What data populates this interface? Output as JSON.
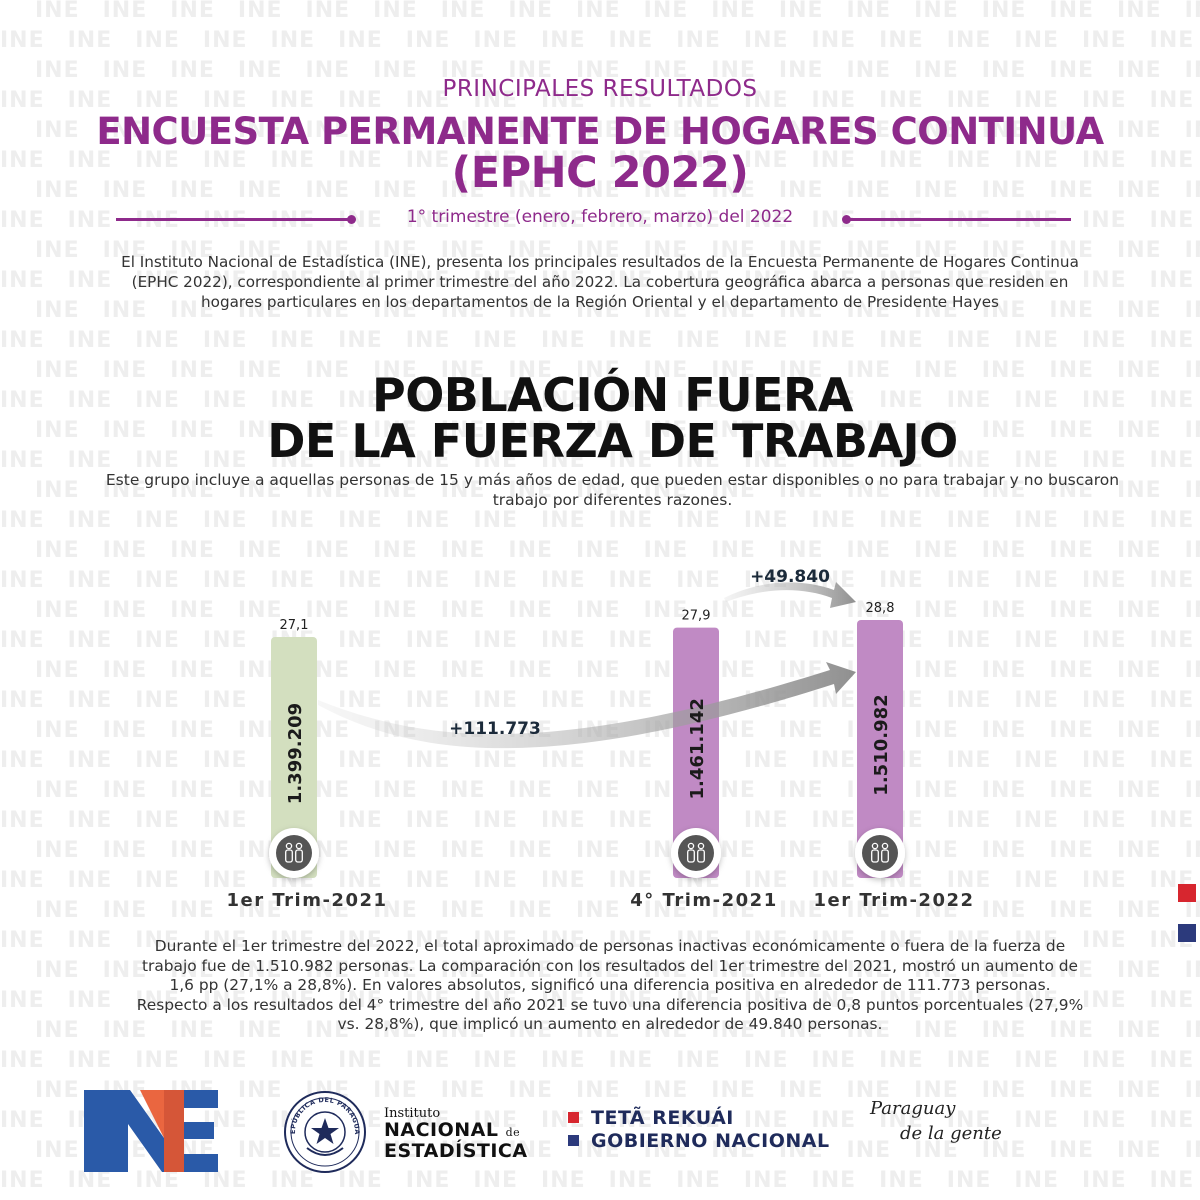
{
  "header": {
    "kicker": "PRINCIPALES RESULTADOS",
    "title_line1": "ENCUESTA PERMANENTE DE HOGARES CONTINUA",
    "title_line2": "(EPHC 2022)",
    "period": "1° trimestre (enero, febrero, marzo) del 2022"
  },
  "intro": "El Instituto Nacional de Estadística (INE), presenta los principales resultados de la Encuesta Permanente de Hogares Continua (EPHC 2022), correspondiente al primer trimestre del año 2022.  La cobertura geográfica abarca a personas que residen en hogares particulares en los departamentos de la Región Oriental y el departamento de Presidente Hayes",
  "section": {
    "title_line1": "POBLACIÓN FUERA",
    "title_line2": "DE LA FUERZA DE TRABAJO",
    "description": "Este grupo incluye a aquellas personas de 15 y más años de edad, que pueden estar disponibles o no para trabajar y no buscaron trabajo por diferentes razones."
  },
  "chart_data": {
    "type": "bar",
    "categories": [
      "1er Trim-2021",
      "4° Trim-2021",
      "1er Trim-2022"
    ],
    "values": [
      1399209,
      1461142,
      1510982
    ],
    "value_labels": [
      "1.399.209",
      "1.461.142",
      "1.510.982"
    ],
    "rates": [
      27.1,
      27.9,
      28.8
    ],
    "rate_labels": [
      "27,1",
      "27,9",
      "28,8"
    ],
    "bar_colors": [
      "#d3dfbf",
      "#c08ac4",
      "#c08ac4"
    ],
    "annotations": [
      {
        "label": "+111.773",
        "from": "1er Trim-2021",
        "to": "1er Trim-2022"
      },
      {
        "label": "+49.840",
        "from": "4° Trim-2021",
        "to": "1er Trim-2022"
      }
    ],
    "icon": "people-icon",
    "grid": false,
    "legend": "none"
  },
  "summary": {
    "paragraph1": "Durante el 1er trimestre del 2022, el total aproximado de personas inactivas económicamente o fuera de la fuerza de trabajo fue de 1.510.982 personas. La comparación con los resultados del 1er trimestre del 2021, mostró un aumento de 1,6 pp (27,1% a 28,8%). En valores absolutos, significó una diferencia positiva en alrededor de 111.773 personas.",
    "paragraph2": "Respecto a los resultados del 4° trimestre del año 2021 se tuvo una diferencia positiva de 0,8 puntos porcentuales (27,9% vs. 28,8%), que implicó un aumento  en alrededor de 49.840 personas."
  },
  "watermark_text": "INE",
  "footer": {
    "seal_text": "REPÚBLICA DEL PARAGUAY",
    "institute_small": "Instituto",
    "institute_line1": "NACIONAL",
    "institute_de": "de",
    "institute_line2": "ESTADÍSTICA",
    "gov_line1": "TETÃ REKUÁI",
    "gov_line2": "GOBIERNO NACIONAL",
    "brand_line1": "Paraguay",
    "brand_line2": "de la gente"
  },
  "colors": {
    "purple": "#8e2a8b",
    "bar_green": "#d3dfbf",
    "bar_purple": "#c08ac4",
    "flag_red": "#d7262f",
    "flag_blue": "#2c3a7c",
    "logo_blue": "#2a5aa8",
    "logo_orange": "#e8552b",
    "navy": "#1f2b5b"
  }
}
